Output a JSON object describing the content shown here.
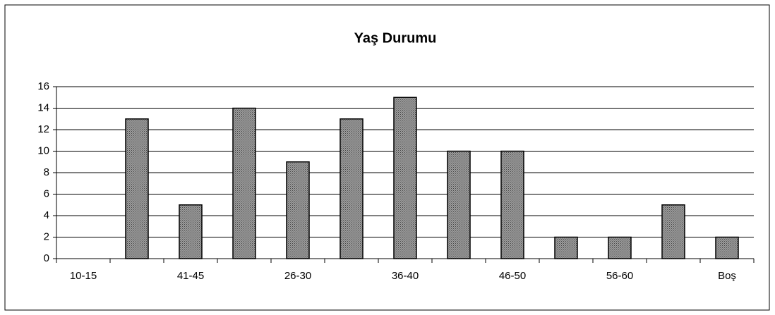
{
  "chart_data": {
    "type": "bar",
    "title": "Yaş Durumu",
    "categories": [
      "10-15",
      null,
      "41-45",
      null,
      "26-30",
      null,
      "36-40",
      null,
      "46-50",
      null,
      "56-60",
      null,
      "Boş"
    ],
    "values": [
      0,
      13,
      5,
      14,
      9,
      13,
      15,
      10,
      10,
      2,
      2,
      5,
      2
    ],
    "color": "#9c9c9c",
    "ylim": [
      0,
      16
    ],
    "yticks": [
      0,
      2,
      4,
      6,
      8,
      10,
      12,
      14,
      16
    ],
    "grid": true
  }
}
